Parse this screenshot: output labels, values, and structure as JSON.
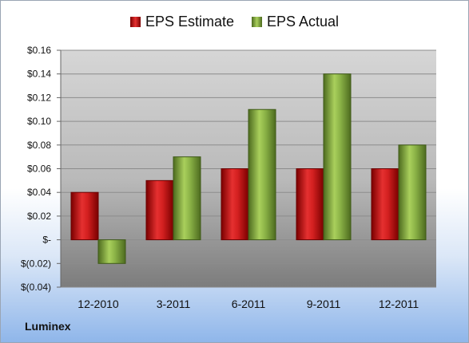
{
  "company": "Luminex",
  "legend": {
    "estimate": "EPS Estimate",
    "actual": "EPS Actual"
  },
  "colors": {
    "estimate": "#d42020",
    "actual": "#8db548"
  },
  "chart_data": {
    "type": "bar",
    "categories": [
      "12-2010",
      "3-2011",
      "6-2011",
      "9-2011",
      "12-2011"
    ],
    "series": [
      {
        "name": "EPS Estimate",
        "values": [
          0.04,
          0.05,
          0.06,
          0.06,
          0.06
        ]
      },
      {
        "name": "EPS Actual",
        "values": [
          -0.02,
          0.07,
          0.11,
          0.14,
          0.08
        ]
      }
    ],
    "yticks": [
      "$0.16",
      "$0.14",
      "$0.12",
      "$0.10",
      "$0.08",
      "$0.06",
      "$0.04",
      "$0.02",
      "$-",
      "$(0.02)",
      "$(0.04)"
    ],
    "ylim": [
      -0.04,
      0.16
    ],
    "grid": true,
    "legend_position": "top"
  }
}
